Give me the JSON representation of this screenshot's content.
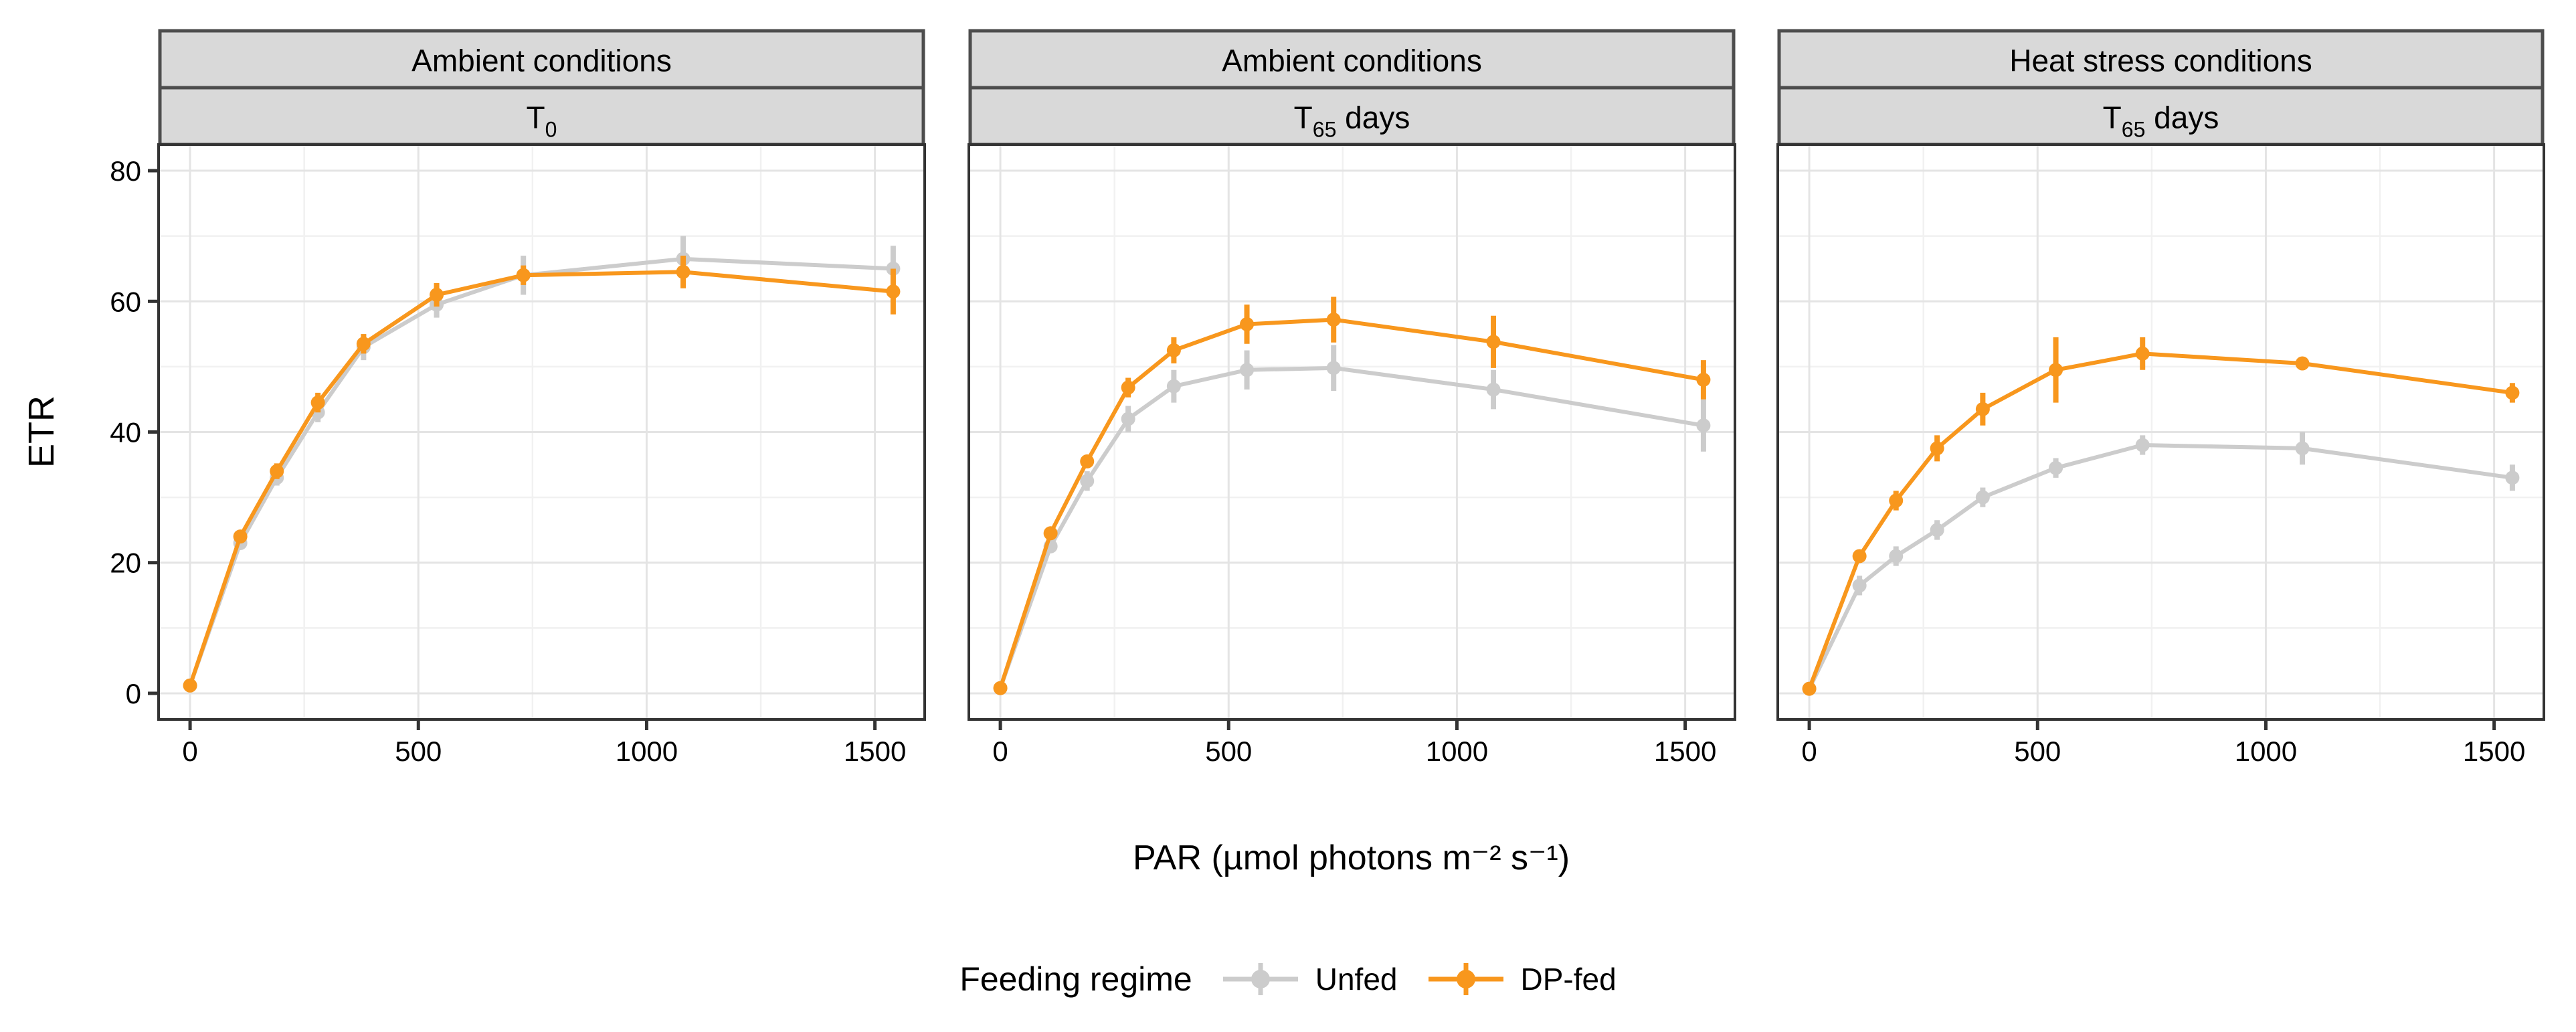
{
  "figure": {
    "background": "#FFFFFF"
  },
  "legend": {
    "title": "Feeding regime",
    "entries": [
      {
        "name": "Unfed",
        "color": "#CCCCCC"
      },
      {
        "name": "DP-fed",
        "color": "#F8971D"
      }
    ]
  },
  "chart_data": {
    "type": "line",
    "title": "",
    "x_label": "PAR (µmol photons m⁻² s⁻¹)",
    "y_label": "ETR",
    "x_ticks": [
      0,
      500,
      1000,
      1500
    ],
    "y_ticks": [
      0,
      20,
      40,
      60,
      80
    ],
    "x_minor_ticks": [
      250,
      750,
      1250
    ],
    "y_minor_ticks": [
      10,
      30,
      50,
      70
    ],
    "x_range": [
      -69,
      1609
    ],
    "y_range": [
      -4,
      84
    ],
    "grid": "on",
    "legend_position": "bottom",
    "x": [
      0,
      110,
      190,
      280,
      380,
      540,
      730,
      1080,
      1540
    ],
    "facets": [
      {
        "condition": "Ambient conditions",
        "time": {
          "text": "T",
          "sub": "0",
          "after": ""
        },
        "series": [
          {
            "name": "Unfed",
            "color": "#CCCCCC",
            "values": [
              1.2,
              23,
              33,
              43,
              53,
              59.5,
              64,
              66.5,
              65
            ],
            "errors": [
              0.3,
              1,
              1.2,
              1.5,
              2,
              2,
              3,
              3.5,
              3.5
            ]
          },
          {
            "name": "DP-fed",
            "color": "#F8971D",
            "values": [
              1.2,
              24,
              34,
              44.5,
              53.5,
              61,
              64,
              64.5,
              61.5
            ],
            "errors": [
              0.3,
              1,
              1.2,
              1.5,
              1.5,
              1.8,
              1.5,
              2.5,
              3.5
            ]
          }
        ]
      },
      {
        "condition": "Ambient conditions",
        "time": {
          "text": "T",
          "sub": "65",
          "after": " days"
        },
        "series": [
          {
            "name": "Unfed",
            "color": "#CCCCCC",
            "values": [
              0.8,
              22.5,
              32.5,
              42,
              47,
              49.5,
              49.8,
              46.5,
              41
            ],
            "errors": [
              0.2,
              1,
              1.5,
              2,
              2.5,
              3,
              3.5,
              3,
              4
            ]
          },
          {
            "name": "DP-fed",
            "color": "#F8971D",
            "values": [
              0.8,
              24.5,
              35.5,
              46.8,
              52.5,
              56.5,
              57.2,
              53.8,
              48
            ],
            "errors": [
              0.2,
              1,
              1,
              1.5,
              2,
              3,
              3.5,
              4,
              3
            ]
          }
        ]
      },
      {
        "condition": "Heat stress conditions",
        "time": {
          "text": "T",
          "sub": "65",
          "after": " days"
        },
        "series": [
          {
            "name": "Unfed",
            "color": "#CCCCCC",
            "values": [
              0.7,
              16.5,
              21,
              25,
              30,
              34.5,
              38,
              37.5,
              33
            ],
            "errors": [
              0.2,
              1.5,
              1.5,
              1.5,
              1.5,
              1.5,
              1.5,
              2.5,
              2
            ]
          },
          {
            "name": "DP-fed",
            "color": "#F8971D",
            "values": [
              0.7,
              21,
              29.5,
              37.5,
              43.5,
              49.5,
              52,
              50.5,
              46
            ],
            "errors": [
              0.2,
              1,
              1.5,
              2,
              2.5,
              5,
              2.5,
              1,
              1.5
            ]
          }
        ]
      }
    ],
    "style": {
      "strip_fill": "#D9D9D9",
      "strip_border": "#4D4D4D",
      "panel_border": "#333333",
      "grid_major": "#E4E4E4",
      "grid_minor": "#F1F1F1",
      "tick_color": "#333333",
      "text_color": "#000000"
    }
  }
}
